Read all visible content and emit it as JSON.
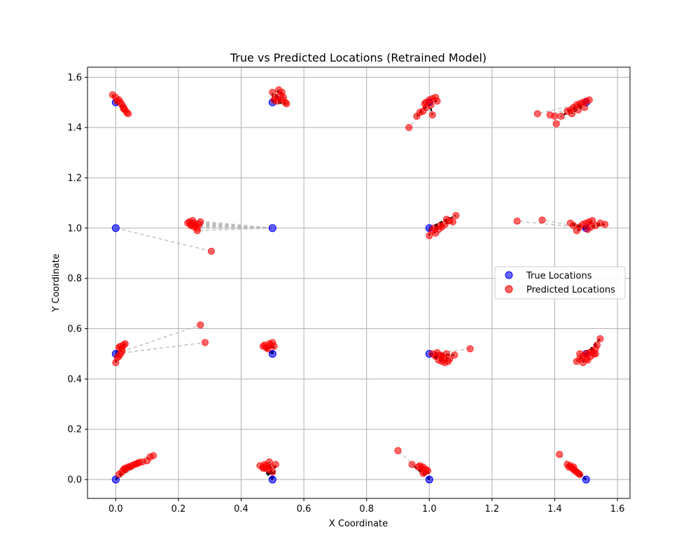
{
  "chart_data": {
    "type": "scatter",
    "title": "True vs Predicted Locations (Retrained Model)",
    "xlabel": "X Coordinate",
    "ylabel": "Y Coordinate",
    "xlim": [
      -0.09,
      1.64
    ],
    "ylim": [
      -0.075,
      1.64
    ],
    "xticks": [
      "0.0",
      "0.2",
      "0.4",
      "0.6",
      "0.8",
      "1.0",
      "1.2",
      "1.4",
      "1.6"
    ],
    "yticks": [
      "0.0",
      "0.2",
      "0.4",
      "0.6",
      "0.8",
      "1.0",
      "1.2",
      "1.4",
      "1.6"
    ],
    "grid": true,
    "legend_placement": "center-right",
    "colors": {
      "true": "#0000ff",
      "predicted": "#ff0000",
      "link_dense": "#000000",
      "link_light": "#bbbbbb",
      "grid": "#b0b0b0"
    },
    "series": [
      {
        "name": "True Locations",
        "points": [
          [
            0.0,
            0.0
          ],
          [
            0.5,
            0.0
          ],
          [
            1.0,
            0.0
          ],
          [
            1.5,
            0.0
          ],
          [
            0.0,
            0.5
          ],
          [
            0.5,
            0.5
          ],
          [
            1.0,
            0.5
          ],
          [
            1.5,
            0.5
          ],
          [
            0.0,
            1.0
          ],
          [
            0.5,
            1.0
          ],
          [
            1.0,
            1.0
          ],
          [
            1.5,
            1.0
          ],
          [
            0.0,
            1.5
          ],
          [
            0.5,
            1.5
          ],
          [
            1.0,
            1.5
          ],
          [
            1.5,
            1.5
          ]
        ]
      },
      {
        "name": "Predicted Locations",
        "groups": [
          {
            "true": [
              0.0,
              0.0
            ],
            "points": [
              [
                0.01,
                0.02
              ],
              [
                0.02,
                0.03
              ],
              [
                0.025,
                0.04
              ],
              [
                0.03,
                0.045
              ],
              [
                0.04,
                0.05
              ],
              [
                0.05,
                0.055
              ],
              [
                0.06,
                0.06
              ],
              [
                0.065,
                0.062
              ],
              [
                0.07,
                0.065
              ],
              [
                0.075,
                0.068
              ],
              [
                0.085,
                0.07
              ],
              [
                0.1,
                0.075
              ],
              [
                0.11,
                0.09
              ],
              [
                0.12,
                0.095
              ],
              [
                0.03,
                0.04
              ],
              [
                0.045,
                0.05
              ]
            ]
          },
          {
            "true": [
              0.5,
              0.0
            ],
            "points": [
              [
                0.47,
                0.05
              ],
              [
                0.475,
                0.06
              ],
              [
                0.48,
                0.045
              ],
              [
                0.49,
                0.07
              ],
              [
                0.46,
                0.055
              ],
              [
                0.485,
                0.04
              ],
              [
                0.5,
                0.03
              ],
              [
                0.51,
                0.06
              ],
              [
                0.47,
                0.045
              ],
              [
                0.48,
                0.055
              ],
              [
                0.495,
                0.05
              ]
            ]
          },
          {
            "true": [
              1.0,
              0.0
            ],
            "points": [
              [
                0.9,
                0.115
              ],
              [
                0.945,
                0.06
              ],
              [
                0.97,
                0.055
              ],
              [
                0.98,
                0.05
              ],
              [
                0.99,
                0.04
              ],
              [
                0.975,
                0.045
              ],
              [
                0.985,
                0.03
              ],
              [
                0.995,
                0.035
              ],
              [
                0.965,
                0.05
              ],
              [
                0.98,
                0.025
              ]
            ]
          },
          {
            "true": [
              1.5,
              0.0
            ],
            "points": [
              [
                1.415,
                0.1
              ],
              [
                1.44,
                0.06
              ],
              [
                1.45,
                0.055
              ],
              [
                1.455,
                0.045
              ],
              [
                1.46,
                0.04
              ],
              [
                1.465,
                0.035
              ],
              [
                1.47,
                0.03
              ],
              [
                1.475,
                0.025
              ],
              [
                1.48,
                0.02
              ],
              [
                1.445,
                0.05
              ],
              [
                1.46,
                0.05
              ]
            ]
          },
          {
            "true": [
              0.0,
              0.5
            ],
            "points": [
              [
                0.0,
                0.465
              ],
              [
                0.01,
                0.49
              ],
              [
                0.015,
                0.5
              ],
              [
                0.02,
                0.52
              ],
              [
                0.025,
                0.535
              ],
              [
                0.015,
                0.53
              ],
              [
                0.02,
                0.51
              ],
              [
                0.03,
                0.54
              ],
              [
                0.005,
                0.485
              ],
              [
                0.01,
                0.525
              ],
              [
                0.27,
                0.615
              ],
              [
                0.285,
                0.545
              ]
            ]
          },
          {
            "true": [
              0.5,
              0.5
            ],
            "points": [
              [
                0.47,
                0.53
              ],
              [
                0.48,
                0.525
              ],
              [
                0.49,
                0.54
              ],
              [
                0.495,
                0.535
              ],
              [
                0.5,
                0.545
              ],
              [
                0.485,
                0.52
              ],
              [
                0.475,
                0.535
              ],
              [
                0.505,
                0.53
              ]
            ]
          },
          {
            "true": [
              1.0,
              0.5
            ],
            "points": [
              [
                1.01,
                0.5
              ],
              [
                1.02,
                0.49
              ],
              [
                1.03,
                0.475
              ],
              [
                1.04,
                0.47
              ],
              [
                1.05,
                0.465
              ],
              [
                1.06,
                0.47
              ],
              [
                1.045,
                0.485
              ],
              [
                1.035,
                0.495
              ],
              [
                1.055,
                0.5
              ],
              [
                1.065,
                0.48
              ],
              [
                1.08,
                0.495
              ],
              [
                1.13,
                0.52
              ],
              [
                1.025,
                0.505
              ],
              [
                1.04,
                0.49
              ]
            ]
          },
          {
            "true": [
              1.5,
              0.5
            ],
            "points": [
              [
                1.47,
                0.47
              ],
              [
                1.48,
                0.48
              ],
              [
                1.49,
                0.49
              ],
              [
                1.5,
                0.5
              ],
              [
                1.51,
                0.505
              ],
              [
                1.52,
                0.51
              ],
              [
                1.53,
                0.52
              ],
              [
                1.535,
                0.535
              ],
              [
                1.545,
                0.56
              ],
              [
                1.515,
                0.49
              ],
              [
                1.505,
                0.475
              ],
              [
                1.49,
                0.465
              ],
              [
                1.525,
                0.5
              ],
              [
                1.48,
                0.5
              ],
              [
                1.5,
                0.48
              ],
              [
                1.53,
                0.5
              ]
            ]
          },
          {
            "true": [
              0.0,
              1.0
            ],
            "points": [
              [
                0.305,
                0.908
              ]
            ]
          },
          {
            "true": [
              0.5,
              1.0
            ],
            "points": [
              [
                0.23,
                1.02
              ],
              [
                0.235,
                1.025
              ],
              [
                0.24,
                1.015
              ],
              [
                0.245,
                1.03
              ],
              [
                0.25,
                1.02
              ],
              [
                0.255,
                1.01
              ],
              [
                0.26,
                1.0
              ],
              [
                0.26,
                0.99
              ],
              [
                0.265,
                1.015
              ],
              [
                0.27,
                1.025
              ],
              [
                0.25,
                1.005
              ],
              [
                0.24,
                1.01
              ]
            ]
          },
          {
            "true": [
              1.0,
              1.0
            ],
            "points": [
              [
                1.0,
                0.97
              ],
              [
                1.01,
                0.99
              ],
              [
                1.02,
                0.98
              ],
              [
                1.03,
                0.995
              ],
              [
                1.04,
                1.005
              ],
              [
                1.05,
                1.015
              ],
              [
                1.055,
                1.035
              ],
              [
                1.065,
                1.03
              ],
              [
                1.075,
                1.025
              ],
              [
                1.085,
                1.05
              ],
              [
                1.015,
                1.0
              ],
              [
                1.035,
                1.01
              ]
            ]
          },
          {
            "true": [
              1.5,
              1.0
            ],
            "points": [
              [
                1.28,
                1.028
              ],
              [
                1.36,
                1.032
              ],
              [
                1.45,
                1.02
              ],
              [
                1.46,
                1.01
              ],
              [
                1.47,
                0.99
              ],
              [
                1.48,
                1.005
              ],
              [
                1.49,
                1.015
              ],
              [
                1.5,
                1.02
              ],
              [
                1.51,
                1.025
              ],
              [
                1.52,
                1.03
              ],
              [
                1.53,
                1.01
              ],
              [
                1.545,
                1.02
              ],
              [
                1.56,
                1.015
              ],
              [
                1.505,
                0.995
              ],
              [
                1.515,
                1.005
              ]
            ]
          },
          {
            "true": [
              0.0,
              1.5
            ],
            "points": [
              [
                -0.01,
                1.53
              ],
              [
                0.0,
                1.52
              ],
              [
                0.01,
                1.51
              ],
              [
                0.015,
                1.5
              ],
              [
                0.02,
                1.49
              ],
              [
                0.025,
                1.48
              ],
              [
                0.03,
                1.47
              ],
              [
                0.035,
                1.46
              ],
              [
                0.04,
                1.455
              ],
              [
                0.005,
                1.505
              ],
              [
                0.025,
                1.475
              ]
            ]
          },
          {
            "true": [
              0.5,
              1.5
            ],
            "points": [
              [
                0.5,
                1.54
              ],
              [
                0.51,
                1.52
              ],
              [
                0.52,
                1.55
              ],
              [
                0.525,
                1.53
              ],
              [
                0.53,
                1.51
              ],
              [
                0.535,
                1.52
              ],
              [
                0.54,
                1.5
              ],
              [
                0.545,
                1.495
              ],
              [
                0.505,
                1.51
              ],
              [
                0.515,
                1.505
              ],
              [
                0.53,
                1.54
              ]
            ]
          },
          {
            "true": [
              1.0,
              1.5
            ],
            "points": [
              [
                0.935,
                1.4
              ],
              [
                0.96,
                1.445
              ],
              [
                0.97,
                1.46
              ],
              [
                0.98,
                1.465
              ],
              [
                0.985,
                1.495
              ],
              [
                0.99,
                1.5
              ],
              [
                1.0,
                1.51
              ],
              [
                1.01,
                1.515
              ],
              [
                1.02,
                1.52
              ],
              [
                1.025,
                1.505
              ],
              [
                1.01,
                1.45
              ],
              [
                0.99,
                1.48
              ],
              [
                1.005,
                1.49
              ]
            ]
          },
          {
            "true": [
              1.5,
              1.5
            ],
            "points": [
              [
                1.345,
                1.455
              ],
              [
                1.385,
                1.45
              ],
              [
                1.4,
                1.445
              ],
              [
                1.405,
                1.415
              ],
              [
                1.42,
                1.445
              ],
              [
                1.44,
                1.465
              ],
              [
                1.45,
                1.47
              ],
              [
                1.46,
                1.48
              ],
              [
                1.47,
                1.49
              ],
              [
                1.48,
                1.495
              ],
              [
                1.49,
                1.5
              ],
              [
                1.5,
                1.505
              ],
              [
                1.51,
                1.51
              ],
              [
                1.455,
                1.455
              ],
              [
                1.475,
                1.47
              ],
              [
                1.495,
                1.48
              ]
            ]
          }
        ]
      }
    ]
  }
}
